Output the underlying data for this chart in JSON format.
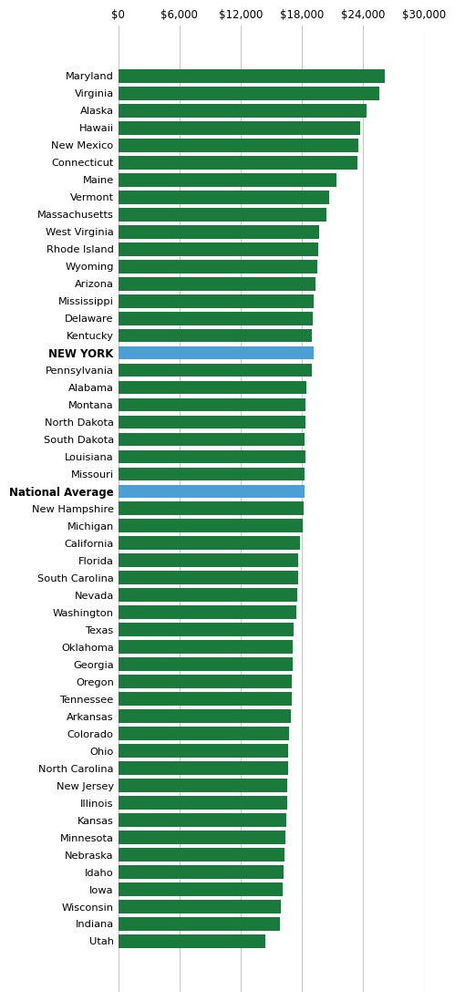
{
  "categories": [
    "Maryland",
    "Virginia",
    "Alaska",
    "Hawaii",
    "New Mexico",
    "Connecticut",
    "Maine",
    "Vermont",
    "Massachusetts",
    "West Virginia",
    "Rhode Island",
    "Wyoming",
    "Arizona",
    "Mississippi",
    "Delaware",
    "Kentucky",
    "NEW YORK",
    "Pennsylvania",
    "Alabama",
    "Montana",
    "North Dakota",
    "South Dakota",
    "Louisiana",
    "Missouri",
    "National Average",
    "New Hampshire",
    "Michigan",
    "California",
    "Florida",
    "South Carolina",
    "Nevada",
    "Washington",
    "Texas",
    "Oklahoma",
    "Georgia",
    "Oregon",
    "Tennessee",
    "Arkansas",
    "Colorado",
    "Ohio",
    "North Carolina",
    "New Jersey",
    "Illinois",
    "Kansas",
    "Minnesota",
    "Nebraska",
    "Idaho",
    "Iowa",
    "Wisconsin",
    "Indiana",
    "Utah"
  ],
  "values": [
    26200,
    25600,
    24400,
    23700,
    23600,
    23500,
    21400,
    20700,
    20400,
    19700,
    19600,
    19500,
    19400,
    19200,
    19100,
    19000,
    19200,
    19000,
    18500,
    18400,
    18400,
    18300,
    18400,
    18300,
    18300,
    18200,
    18100,
    17800,
    17700,
    17700,
    17600,
    17500,
    17200,
    17100,
    17100,
    17000,
    17000,
    16900,
    16800,
    16700,
    16700,
    16600,
    16600,
    16500,
    16400,
    16300,
    16200,
    16100,
    16000,
    15900,
    14400
  ],
  "bar_colors_special": {
    "NEW YORK": "#4a9fd4",
    "National Average": "#4a9fd4"
  },
  "default_bar_color": "#1a7a3c",
  "xlim": [
    0,
    30000
  ],
  "xticks": [
    0,
    6000,
    12000,
    18000,
    24000,
    30000
  ],
  "background_color": "#ffffff",
  "grid_color": "#c8c8c8",
  "bold_labels": [
    "NEW YORK",
    "National Average"
  ]
}
